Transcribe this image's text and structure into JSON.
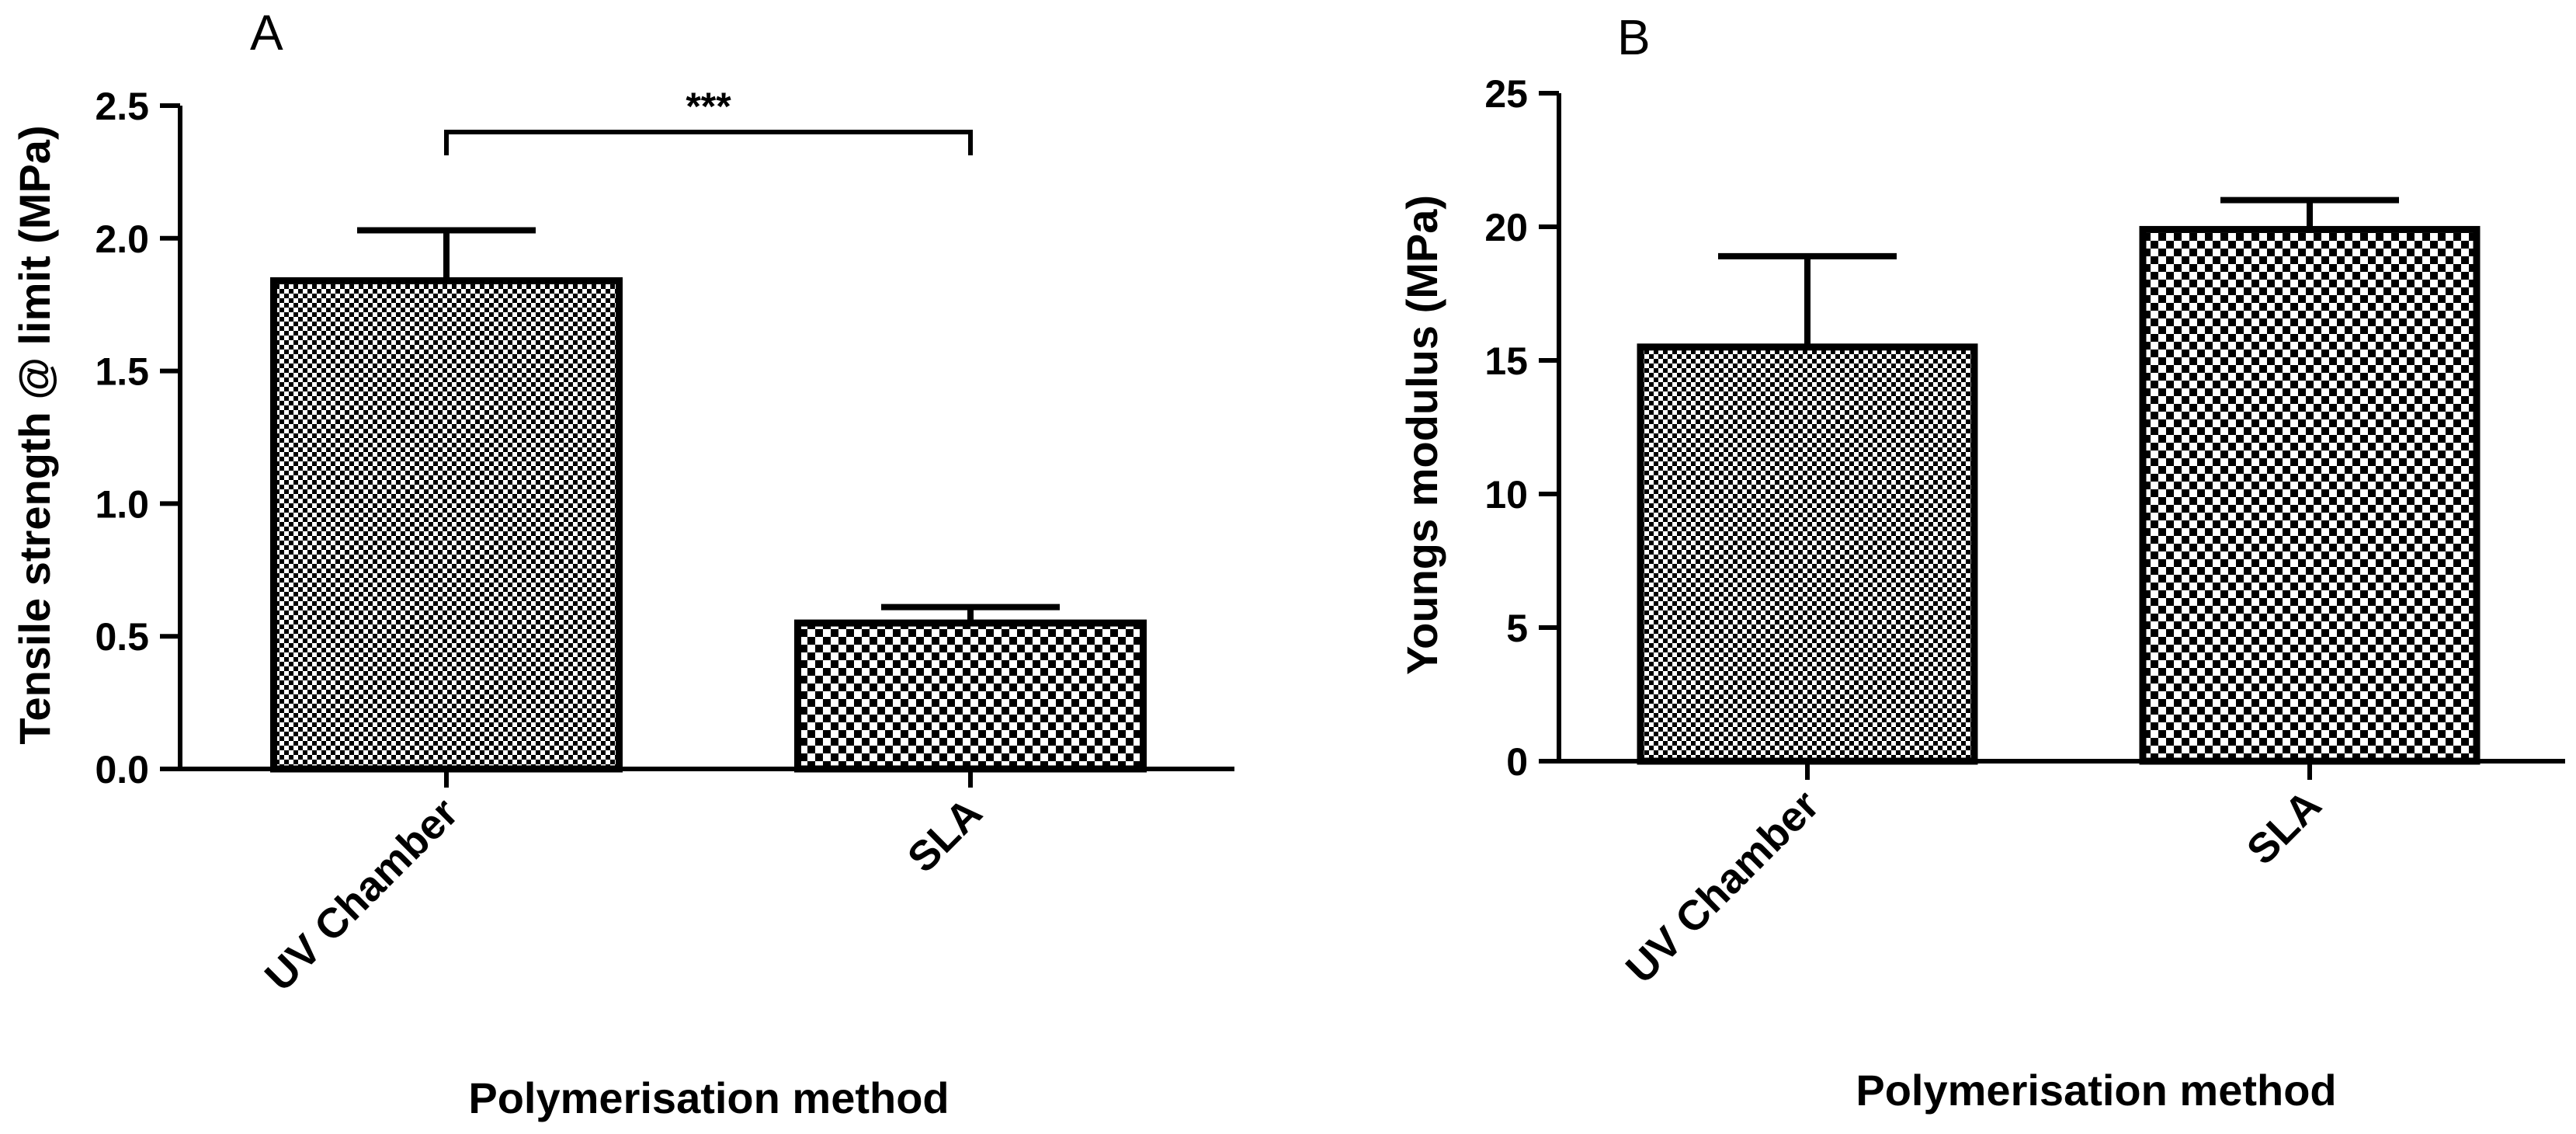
{
  "chart_data": [
    {
      "panel": "A",
      "type": "bar",
      "title": "",
      "categories": [
        "UV Chamber",
        "SLA"
      ],
      "values": [
        1.84,
        0.55
      ],
      "error_upper": [
        2.03,
        0.61
      ],
      "patterns": [
        "fine-checker",
        "coarse-checker"
      ],
      "xlabel": "Polymerisation method",
      "ylabel": "Tensile strength @ limit (MPa)",
      "ylim": [
        0,
        2.5
      ],
      "yticks": [
        "0.0",
        "0.5",
        "1.0",
        "1.5",
        "2.0",
        "2.5"
      ],
      "ytick_values": [
        0,
        0.5,
        1.0,
        1.5,
        2.0,
        2.5
      ],
      "significance": {
        "between": [
          "UV Chamber",
          "SLA"
        ],
        "label": "***",
        "level": 2.37
      },
      "grid": false
    },
    {
      "panel": "B",
      "type": "bar",
      "title": "",
      "categories": [
        "UV Chamber",
        "SLA"
      ],
      "values": [
        15.5,
        19.9
      ],
      "error_upper": [
        18.9,
        21.0
      ],
      "patterns": [
        "fine-checker",
        "coarse-checker"
      ],
      "xlabel": "Polymerisation method",
      "ylabel": "Youngs modulus (MPa)",
      "ylim": [
        0,
        25
      ],
      "yticks": [
        "0",
        "5",
        "10",
        "15",
        "20",
        "25"
      ],
      "ytick_values": [
        0,
        5,
        10,
        15,
        20,
        25
      ],
      "grid": false
    }
  ],
  "colors": {
    "stroke": "#000000",
    "background": "#ffffff"
  }
}
